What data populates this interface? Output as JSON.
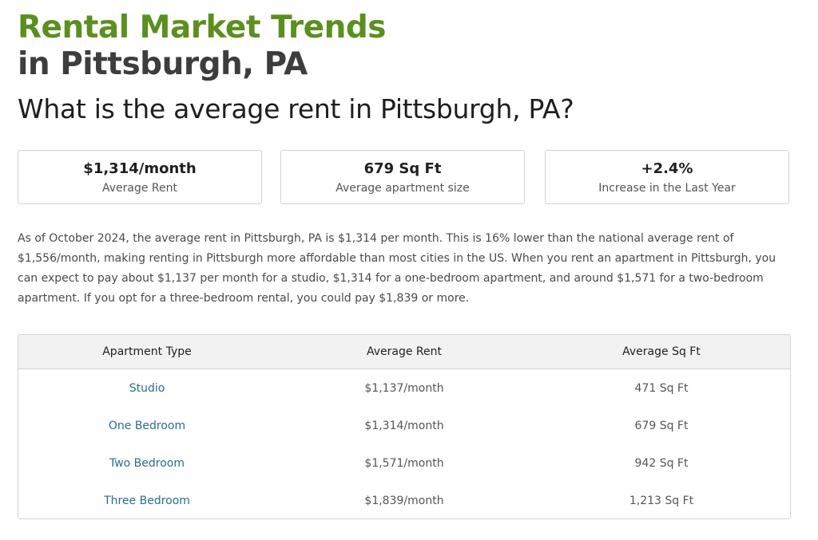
{
  "header": {
    "title_line1": "Rental Market Trends",
    "title_line2": "in Pittsburgh, PA",
    "question": "What is the average rent in Pittsburgh, PA?"
  },
  "stats": [
    {
      "value": "$1,314/month",
      "label": "Average Rent"
    },
    {
      "value": "679 Sq Ft",
      "label": "Average apartment size"
    },
    {
      "value": "+2.4%",
      "label": "Increase in the Last Year"
    }
  ],
  "description": "As of October 2024, the average rent in Pittsburgh, PA is $1,314 per month. This is 16% lower than the national average rent of $1,556/month, making renting in Pittsburgh more affordable than most cities in the US. When you rent an apartment in Pittsburgh, you can expect to pay about $1,137 per month for a studio, $1,314 for a one-bedroom apartment, and around $1,571 for a two-bedroom apartment. If you opt for a three-bedroom rental, you could pay $1,839 or more.",
  "table": {
    "headers": [
      "Apartment Type",
      "Average Rent",
      "Average Sq Ft"
    ],
    "rows": [
      {
        "type": "Studio",
        "rent": "$1,137/month",
        "sqft": "471 Sq Ft"
      },
      {
        "type": "One Bedroom",
        "rent": "$1,314/month",
        "sqft": "679 Sq Ft"
      },
      {
        "type": "Two Bedroom",
        "rent": "$1,571/month",
        "sqft": "942 Sq Ft"
      },
      {
        "type": "Three Bedroom",
        "rent": "$1,839/month",
        "sqft": "1,213 Sq Ft"
      }
    ]
  },
  "colors": {
    "title_green": "#5b8f1f",
    "link": "#2a6f86"
  }
}
